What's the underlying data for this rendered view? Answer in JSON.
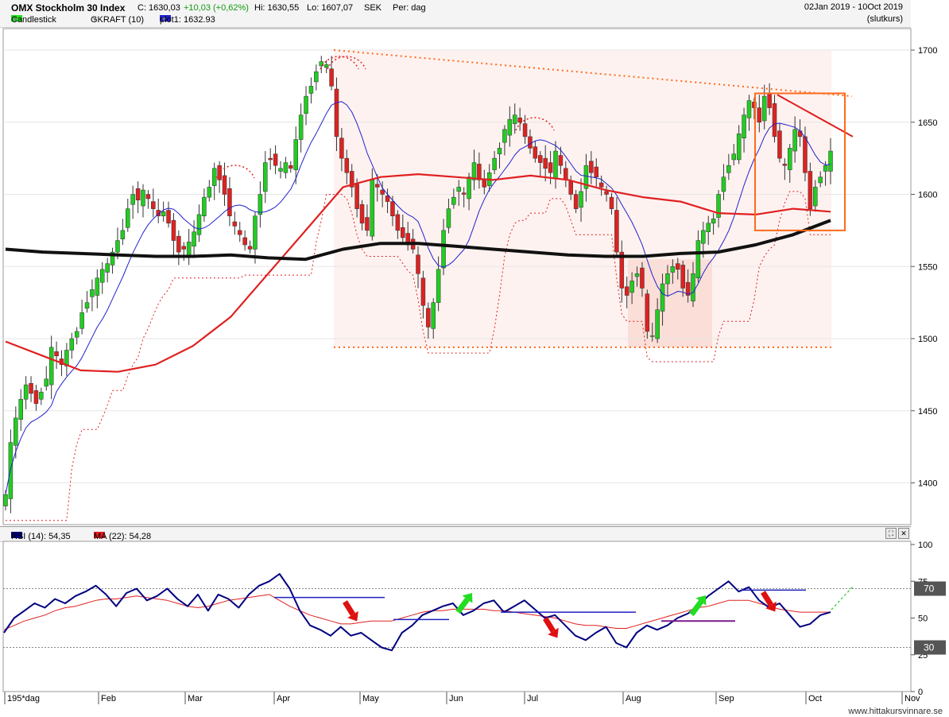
{
  "header": {
    "title": "OMX Stockholm 30 Index",
    "close": "C: 1630,03",
    "change": "+10,03 (+0,62%)",
    "high": "Hi: 1630,55",
    "low": "Lo: 1607,07",
    "currency": "SEK",
    "period": "Per: dag",
    "date_range": "02Jan 2019 - 10Oct 2019",
    "price_type": "(slutkurs)",
    "legend": [
      {
        "label": "Candlestick",
        "color": "#22dd22"
      },
      {
        "label": "GKRAFT (10)",
        "color": ""
      },
      {
        "label": "plot1: 1632.93",
        "color": "#1f1fd0"
      }
    ]
  },
  "rsi_header": {
    "items": [
      {
        "label": "RSI (14): 54,35",
        "color": "#000080"
      },
      {
        "label": "MA (22): 54,28",
        "color": "#e02020"
      }
    ]
  },
  "footer": {
    "site": "www.hittakursvinnare.se"
  },
  "colors": {
    "up": "#22cc22",
    "down": "#dd2222",
    "ma_slow": "#111111",
    "ma_mid": "#e02020",
    "ma_fast": "#2222cc",
    "trend": "#ff6a1a",
    "rsi": "#000080",
    "rsi_ma": "#e02020"
  },
  "chart_data": [
    {
      "type": "candlestick",
      "title": "OMX Stockholm 30 Index",
      "y_ticks": [
        1400,
        1450,
        1500,
        1550,
        1600,
        1650,
        1700
      ],
      "ylim": [
        1370,
        1725
      ],
      "x_ticks": [
        "195*dag",
        "Feb",
        "Mar",
        "Apr",
        "May",
        "Jun",
        "Jul",
        "Aug",
        "Sep",
        "Oct",
        "Nov"
      ],
      "close_approx": [
        1392,
        1428,
        1445,
        1458,
        1468,
        1462,
        1455,
        1463,
        1472,
        1494,
        1488,
        1482,
        1492,
        1500,
        1505,
        1518,
        1525,
        1534,
        1542,
        1548,
        1552,
        1560,
        1568,
        1575,
        1590,
        1600,
        1596,
        1603,
        1597,
        1590,
        1585,
        1588,
        1580,
        1568,
        1560,
        1562,
        1567,
        1574,
        1586,
        1598,
        1605,
        1618,
        1610,
        1600,
        1585,
        1578,
        1572,
        1565,
        1562,
        1585,
        1600,
        1622,
        1624,
        1620,
        1618,
        1622,
        1618,
        1638,
        1655,
        1668,
        1675,
        1685,
        1692,
        1690,
        1675,
        1640,
        1625,
        1615,
        1605,
        1590,
        1580,
        1575,
        1610,
        1605,
        1600,
        1595,
        1585,
        1575,
        1570,
        1565,
        1562,
        1545,
        1523,
        1508,
        1525,
        1548,
        1575,
        1590,
        1598,
        1605,
        1600,
        1612,
        1622,
        1610,
        1605,
        1615,
        1625,
        1632,
        1645,
        1652,
        1655,
        1650,
        1640,
        1632,
        1625,
        1622,
        1618,
        1615,
        1630,
        1620,
        1610,
        1600,
        1590,
        1602,
        1620,
        1615,
        1612,
        1605,
        1600,
        1590,
        1560,
        1535,
        1530,
        1540,
        1545,
        1535,
        1505,
        1502,
        1520,
        1538,
        1545,
        1550,
        1548,
        1535,
        1530,
        1545,
        1568,
        1575,
        1580,
        1583,
        1600,
        1612,
        1620,
        1628,
        1642,
        1655,
        1665,
        1660,
        1650,
        1668,
        1660,
        1640,
        1625,
        1620,
        1632,
        1645,
        1640,
        1615,
        1590,
        1605,
        1612,
        1620,
        1630
      ],
      "ma200_approx": [
        1562,
        1560,
        1559,
        1558,
        1557,
        1557,
        1558,
        1556,
        1555,
        1562,
        1566,
        1566,
        1564,
        1562,
        1560,
        1558,
        1557,
        1557,
        1559,
        1560,
        1565,
        1572,
        1582
      ],
      "ma50_approx": [
        1498,
        1488,
        1478,
        1477,
        1482,
        1495,
        1515,
        1545,
        1575,
        1605,
        1612,
        1614,
        1612,
        1610,
        1613,
        1610,
        1603,
        1598,
        1595,
        1587,
        1586,
        1590,
        1588
      ],
      "trendlines": {
        "resistance_from": 1700,
        "resistance_to": 1668,
        "support": 1494
      },
      "highlight_box": {
        "from": 1575,
        "to": 1670
      }
    },
    {
      "type": "line",
      "title": "RSI (14)",
      "y_ticks": [
        0,
        25,
        50,
        75,
        100
      ],
      "levels": [
        30,
        70
      ],
      "ylim": [
        0,
        100
      ],
      "series": [
        {
          "name": "RSI (14): 54,35",
          "values": [
            40,
            50,
            55,
            60,
            57,
            63,
            60,
            65,
            68,
            72,
            66,
            58,
            67,
            70,
            62,
            65,
            70,
            63,
            58,
            66,
            55,
            66,
            63,
            57,
            66,
            72,
            75,
            80,
            70,
            55,
            45,
            42,
            38,
            44,
            38,
            40,
            35,
            30,
            28,
            40,
            45,
            52,
            55,
            58,
            60,
            52,
            55,
            60,
            62,
            54,
            58,
            62,
            56,
            50,
            52,
            45,
            38,
            35,
            40,
            44,
            33,
            30,
            40,
            45,
            42,
            45,
            50,
            53,
            58,
            65,
            70,
            75,
            68,
            71,
            62,
            57,
            60,
            52,
            44,
            46,
            52,
            54
          ]
        },
        {
          "name": "MA (22): 54,28",
          "values": [
            42,
            45,
            48,
            50,
            52,
            55,
            57,
            58,
            60,
            62,
            63,
            63,
            64,
            65,
            64,
            63,
            62,
            60,
            58,
            57,
            58,
            60,
            62,
            63,
            64,
            65,
            66,
            62,
            58,
            55,
            52,
            50,
            48,
            46,
            46,
            47,
            48,
            48,
            48,
            50,
            52,
            54,
            55,
            55,
            56,
            56,
            56,
            56,
            55,
            55,
            54,
            53,
            52,
            51,
            50,
            48,
            46,
            45,
            45,
            44,
            43,
            43,
            45,
            47,
            49,
            51,
            53,
            55,
            57,
            58,
            60,
            62,
            62,
            62,
            60,
            58,
            56,
            55,
            54,
            54,
            54,
            54
          ]
        }
      ],
      "annotations": {
        "level_70": "70",
        "level_30": "30"
      }
    }
  ]
}
